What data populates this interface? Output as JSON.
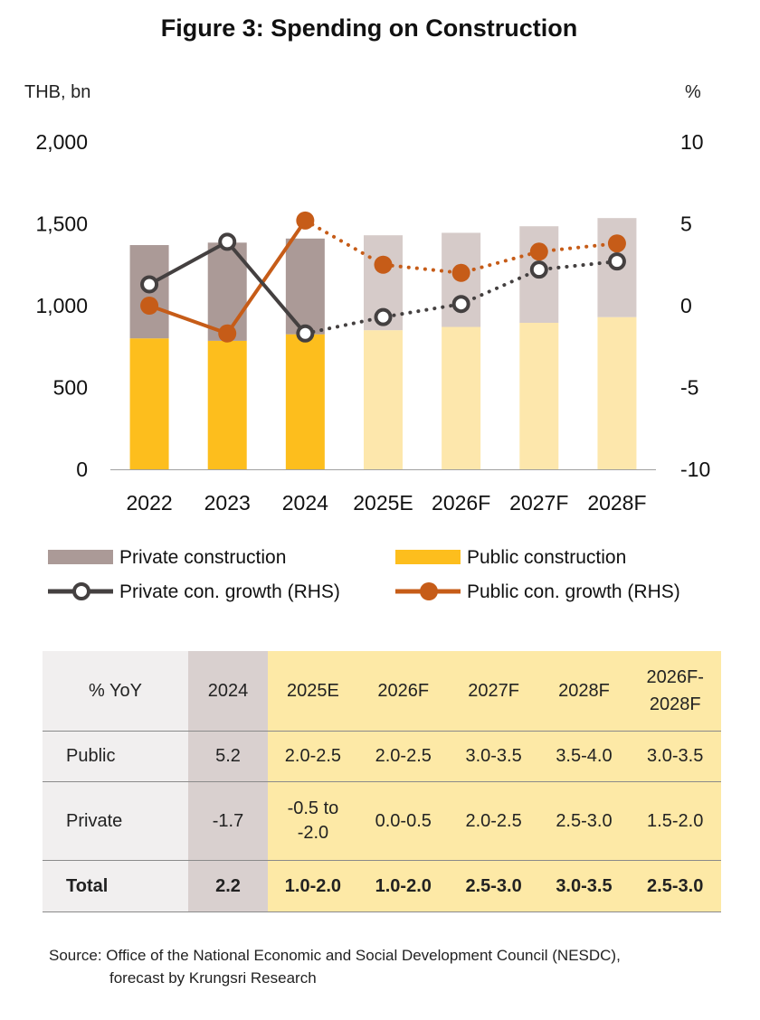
{
  "chart_data": {
    "type": "bar+line",
    "title": "Figure 3: Spending on Construction",
    "y_left_label": "THB, bn",
    "y_right_label": "%",
    "y_left_ticks": [
      "2,000",
      "1,500",
      "1,000",
      "500",
      "0"
    ],
    "y_right_ticks": [
      "10",
      "5",
      "0",
      "-5",
      "-10"
    ],
    "y_left_lim": [
      0,
      2000
    ],
    "y_right_lim": [
      -10,
      10
    ],
    "categories": [
      "2022",
      "2023",
      "2024",
      "2025E",
      "2026F",
      "2027F",
      "2028F"
    ],
    "forecast_start_index": 3,
    "series": [
      {
        "name": "Public construction",
        "kind": "bar",
        "axis": "left",
        "values": [
          800,
          785,
          825,
          850,
          870,
          895,
          930
        ]
      },
      {
        "name": "Private construction",
        "kind": "bar",
        "axis": "left",
        "stacked_on": "Public construction",
        "values": [
          570,
          600,
          585,
          580,
          575,
          590,
          605
        ]
      },
      {
        "name": "Private con. growth (RHS)",
        "kind": "line",
        "axis": "right",
        "values": [
          1.3,
          3.9,
          -1.7,
          -0.7,
          0.1,
          2.2,
          2.7
        ]
      },
      {
        "name": "Public con. growth (RHS)",
        "kind": "line",
        "axis": "right",
        "values": [
          0.0,
          -1.7,
          5.2,
          2.5,
          2.0,
          3.3,
          3.8
        ]
      }
    ],
    "legend": [
      {
        "label": "Private construction",
        "color": "#ab9a97",
        "kind": "bar"
      },
      {
        "label": "Public construction",
        "color": "#fdbe1d",
        "kind": "bar"
      },
      {
        "label": "Private con. growth (RHS)",
        "color": "#444040",
        "kind": "line-hollow"
      },
      {
        "label": "Public con. growth (RHS)",
        "color": "#c65c18",
        "kind": "line-filled"
      }
    ]
  },
  "colors": {
    "private_actual": "#ab9a97",
    "private_forecast": "#d6cbc9",
    "public_actual": "#fdbe1d",
    "public_forecast": "#fde7ac",
    "private_line": "#444040",
    "public_line": "#c65c18"
  },
  "table": {
    "header": [
      "% YoY",
      "2024",
      "2025E",
      "2026F",
      "2027F",
      "2028F",
      "2026F-\n2028F"
    ],
    "rows": [
      {
        "label": "Public",
        "cells": [
          "5.2",
          "2.0-2.5",
          "2.0-2.5",
          "3.0-3.5",
          "3.5-4.0",
          "3.0-3.5"
        ]
      },
      {
        "label": "Private",
        "cells": [
          "-1.7",
          "-0.5 to\n-2.0",
          "0.0-0.5",
          "2.0-2.5",
          "2.5-3.0",
          "1.5-2.0"
        ]
      },
      {
        "label": "Total",
        "cells": [
          "2.2",
          "1.0-2.0",
          "1.0-2.0",
          "2.5-3.0",
          "3.0-3.5",
          "2.5-3.0"
        ]
      }
    ]
  },
  "source": {
    "line1": "Source: Office of the National Economic and Social Development Council (NESDC),",
    "line2": "forecast by Krungsri Research"
  }
}
